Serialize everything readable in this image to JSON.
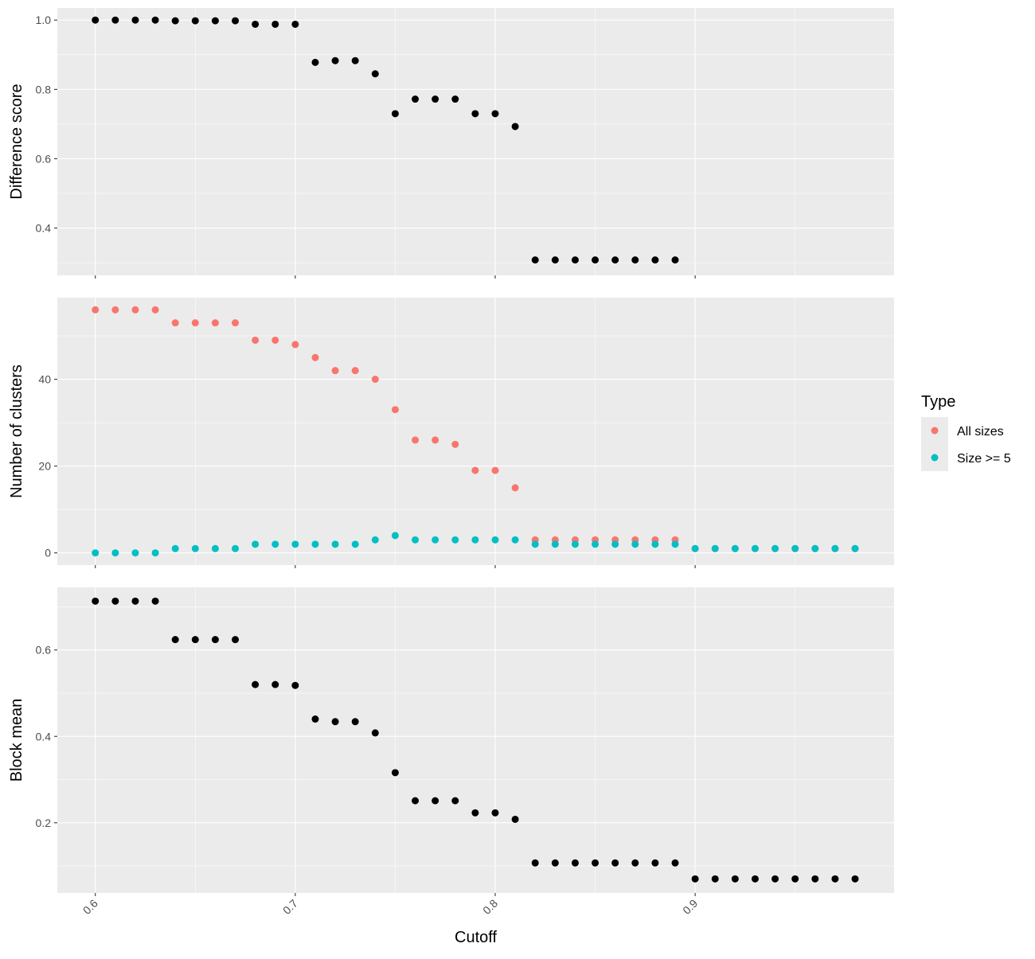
{
  "chart_data": {
    "type": "scatter",
    "xlabel": "Cutoff",
    "xlim": [
      0.581,
      0.9995
    ],
    "x_ticks": [
      "0.6",
      "0.7",
      "0.8",
      "0.9"
    ],
    "x_tick_values": [
      0.6,
      0.7,
      0.8,
      0.9
    ],
    "grid": true,
    "legend": {
      "title": "Type",
      "position": "right",
      "entries": [
        {
          "label": "All sizes",
          "color": "#F8766D"
        },
        {
          "label": "Size >= 5",
          "color": "#00BFC4"
        }
      ]
    },
    "panels": [
      {
        "ylabel": "Difference score",
        "ylim": [
          0.2635,
          1.035
        ],
        "y_ticks": [
          "0.4",
          "0.6",
          "0.8",
          "1.0"
        ],
        "y_tick_values": [
          0.4,
          0.6,
          0.8,
          1.0
        ],
        "series": [
          {
            "color": "#000000",
            "x": [
              0.6,
              0.61,
              0.62,
              0.63,
              0.64,
              0.65,
              0.66,
              0.67,
              0.68,
              0.69,
              0.7,
              0.71,
              0.72,
              0.73,
              0.74,
              0.75,
              0.76,
              0.77,
              0.78,
              0.79,
              0.8,
              0.81,
              0.82,
              0.83,
              0.84,
              0.85,
              0.86,
              0.87,
              0.88,
              0.89
            ],
            "y": [
              1.0,
              1.0,
              1.0,
              1.0,
              0.998,
              0.998,
              0.998,
              0.998,
              0.988,
              0.988,
              0.988,
              0.878,
              0.883,
              0.883,
              0.845,
              0.73,
              0.772,
              0.772,
              0.772,
              0.73,
              0.73,
              0.693,
              0.308,
              0.308,
              0.308,
              0.308,
              0.308,
              0.308,
              0.308,
              0.308
            ]
          }
        ]
      },
      {
        "ylabel": "Number of clusters",
        "ylim": [
          -2.8,
          58.8
        ],
        "y_ticks": [
          "0",
          "20",
          "40"
        ],
        "y_tick_values": [
          0,
          20,
          40
        ],
        "series": [
          {
            "name": "All sizes",
            "color": "#F8766D",
            "x": [
              0.6,
              0.61,
              0.62,
              0.63,
              0.64,
              0.65,
              0.66,
              0.67,
              0.68,
              0.69,
              0.7,
              0.71,
              0.72,
              0.73,
              0.74,
              0.75,
              0.76,
              0.77,
              0.78,
              0.79,
              0.8,
              0.81,
              0.82,
              0.83,
              0.84,
              0.85,
              0.86,
              0.87,
              0.88,
              0.89,
              0.9,
              0.91,
              0.92,
              0.93,
              0.94,
              0.95,
              0.96,
              0.97,
              0.98
            ],
            "y": [
              56,
              56,
              56,
              56,
              53,
              53,
              53,
              53,
              49,
              49,
              48,
              45,
              42,
              42,
              40,
              33,
              26,
              26,
              25,
              19,
              19,
              15,
              3,
              3,
              3,
              3,
              3,
              3,
              3,
              3,
              1,
              1,
              1,
              1,
              1,
              1,
              1,
              1,
              1
            ]
          },
          {
            "name": "Size >= 5",
            "color": "#00BFC4",
            "x": [
              0.6,
              0.61,
              0.62,
              0.63,
              0.64,
              0.65,
              0.66,
              0.67,
              0.68,
              0.69,
              0.7,
              0.71,
              0.72,
              0.73,
              0.74,
              0.75,
              0.76,
              0.77,
              0.78,
              0.79,
              0.8,
              0.81,
              0.82,
              0.83,
              0.84,
              0.85,
              0.86,
              0.87,
              0.88,
              0.89,
              0.9,
              0.91,
              0.92,
              0.93,
              0.94,
              0.95,
              0.96,
              0.97,
              0.98
            ],
            "y": [
              0,
              0,
              0,
              0,
              1,
              1,
              1,
              1,
              2,
              2,
              2,
              2,
              2,
              2,
              3,
              4,
              3,
              3,
              3,
              3,
              3,
              3,
              2,
              2,
              2,
              2,
              2,
              2,
              2,
              2,
              1,
              1,
              1,
              1,
              1,
              1,
              1,
              1,
              1
            ]
          }
        ]
      },
      {
        "ylabel": "Block mean",
        "ylim": [
          0.0375,
          0.745
        ],
        "y_ticks": [
          "0.2",
          "0.4",
          "0.6"
        ],
        "y_tick_values": [
          0.2,
          0.4,
          0.6
        ],
        "series": [
          {
            "color": "#000000",
            "x": [
              0.6,
              0.61,
              0.62,
              0.63,
              0.64,
              0.65,
              0.66,
              0.67,
              0.68,
              0.69,
              0.7,
              0.71,
              0.72,
              0.73,
              0.74,
              0.75,
              0.76,
              0.77,
              0.78,
              0.79,
              0.8,
              0.81,
              0.82,
              0.83,
              0.84,
              0.85,
              0.86,
              0.87,
              0.88,
              0.89,
              0.9,
              0.91,
              0.92,
              0.93,
              0.94,
              0.95,
              0.96,
              0.97,
              0.98
            ],
            "y": [
              0.713,
              0.713,
              0.713,
              0.713,
              0.624,
              0.624,
              0.624,
              0.624,
              0.52,
              0.52,
              0.518,
              0.44,
              0.434,
              0.434,
              0.408,
              0.316,
              0.251,
              0.251,
              0.251,
              0.223,
              0.223,
              0.208,
              0.107,
              0.107,
              0.107,
              0.107,
              0.107,
              0.107,
              0.107,
              0.107,
              0.07,
              0.07,
              0.07,
              0.07,
              0.07,
              0.07,
              0.07,
              0.07,
              0.07
            ]
          }
        ]
      }
    ]
  }
}
